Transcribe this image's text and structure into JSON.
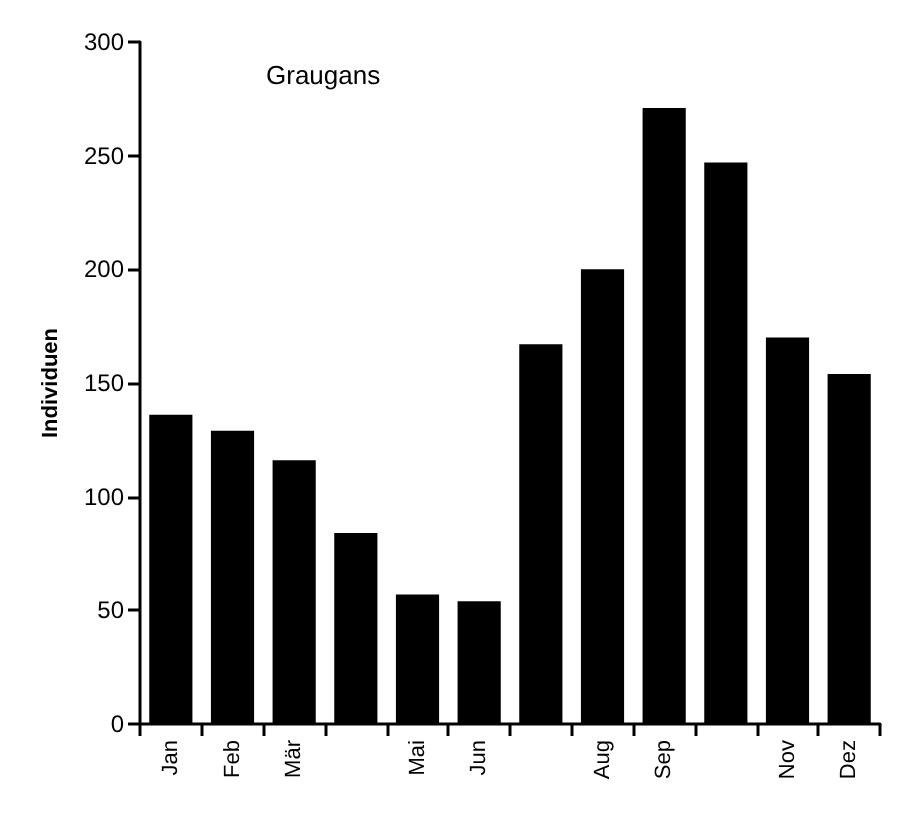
{
  "chart_data": {
    "type": "bar",
    "title": "Graugans",
    "ylabel": "Individuen",
    "categories": [
      "Jan",
      "Feb",
      "Mär",
      null,
      "Mai",
      "Jun",
      null,
      "Aug",
      "Sep",
      null,
      "Nov",
      "Dez"
    ],
    "values": [
      136,
      129,
      116,
      84,
      57,
      54,
      167,
      200,
      271,
      247,
      170,
      154
    ],
    "color": "#000000",
    "ylim": [
      0,
      300
    ],
    "yticks": [
      0,
      50,
      100,
      150,
      200,
      250,
      300
    ],
    "grid": false
  }
}
